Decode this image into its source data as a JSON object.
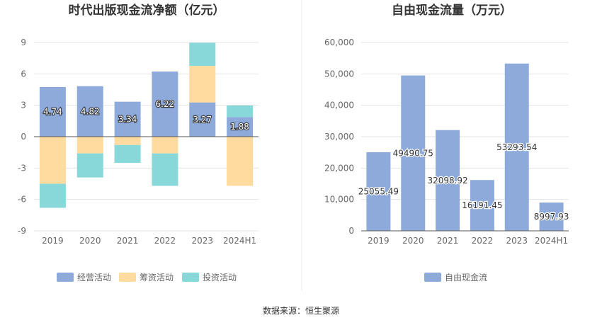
{
  "colors": {
    "operating": "#8eaadb",
    "financing": "#ffdb9f",
    "investing": "#88d8da",
    "fcf": "#8eaadb",
    "grid": "#e3e3e3",
    "axis": "#555555",
    "tick_text": "#666666",
    "title_text": "#333333"
  },
  "chart_data": [
    {
      "type": "bar",
      "stacked": true,
      "title": "时代出版现金流净额（亿元）",
      "categories": [
        "2019",
        "2020",
        "2021",
        "2022",
        "2023",
        "2024H1"
      ],
      "yticks": [
        "9",
        "6",
        "3",
        "0",
        "-3",
        "-6",
        "-9"
      ],
      "ylim": [
        -9,
        9
      ],
      "grid": true,
      "legend_position": "bottom",
      "series": [
        {
          "name": "经营活动",
          "values": [
            4.74,
            4.82,
            3.34,
            6.22,
            3.27,
            1.88
          ],
          "labels": [
            "4.74",
            "4.82",
            "3.34",
            "6.22",
            "3.27",
            "1.88"
          ]
        },
        {
          "name": "筹资活动",
          "values": [
            -4.5,
            -1.6,
            -0.8,
            -1.6,
            3.5,
            -4.7
          ]
        },
        {
          "name": "投资活动",
          "values": [
            -2.3,
            -2.3,
            -1.7,
            -3.1,
            2.2,
            1.1
          ]
        }
      ]
    },
    {
      "type": "bar",
      "title": "自由现金流量（万元）",
      "categories": [
        "2019",
        "2020",
        "2021",
        "2022",
        "2023",
        "2024H1"
      ],
      "yticks": [
        "60,000",
        "50,000",
        "40,000",
        "30,000",
        "20,000",
        "10,000",
        "0"
      ],
      "ylim": [
        0,
        60000
      ],
      "grid": true,
      "legend_position": "bottom",
      "series": [
        {
          "name": "自由现金流",
          "values": [
            25055.49,
            49490.75,
            32098.92,
            16191.45,
            53293.54,
            8997.93
          ],
          "labels": [
            "25055.49",
            "49490.75",
            "32098.92",
            "16191.45",
            "53293.54",
            "8997.93"
          ]
        }
      ]
    }
  ],
  "footer": {
    "source": "数据来源：恒生聚源"
  }
}
